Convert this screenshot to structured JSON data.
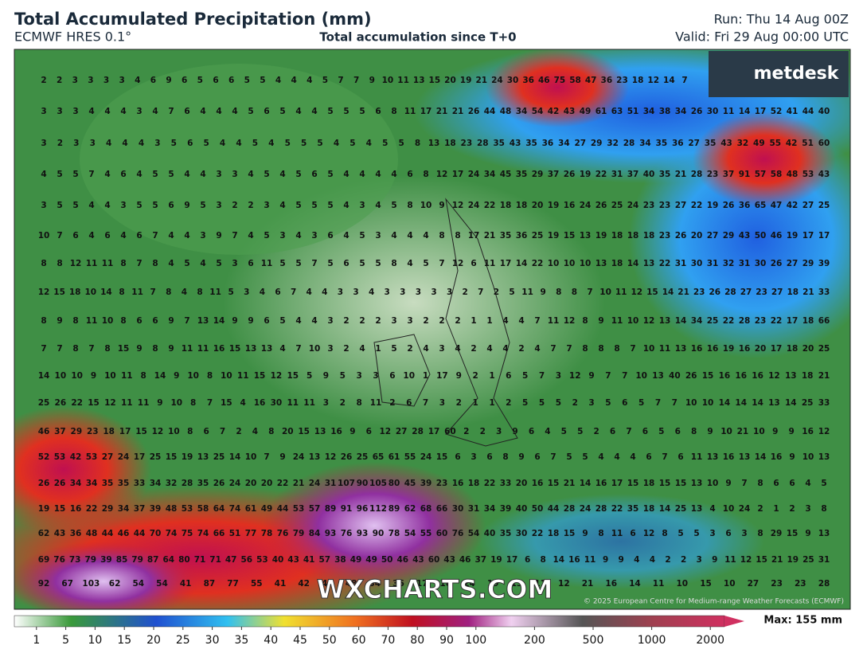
{
  "header": {
    "title": "Total Accumulated Precipitation (mm)",
    "model": "ECMWF HRES 0.1°",
    "subtitle": "Total accumulation since T+0",
    "run": "Run: Thu 14 Aug 00Z",
    "valid": "Valid: Fri 29 Aug 00:00 UTC"
  },
  "logo": "metdesk",
  "watermark": "WXCHARTS.COM",
  "copyright": "© 2025 European Centre for Medium-range Weather Forecasts (ECMWF)",
  "grid": {
    "rows": [
      [
        2,
        2,
        3,
        3,
        3,
        3,
        4,
        6,
        9,
        6,
        5,
        6,
        6,
        5,
        5,
        4,
        4,
        4,
        5,
        7,
        7,
        9,
        10,
        11,
        13,
        15,
        20,
        19,
        21,
        24,
        30,
        36,
        46,
        75,
        58,
        47,
        36,
        23,
        18,
        12,
        14,
        7
      ],
      [
        3,
        3,
        3,
        4,
        4,
        4,
        3,
        4,
        7,
        6,
        4,
        4,
        4,
        5,
        6,
        5,
        4,
        4,
        5,
        5,
        5,
        6,
        8,
        11,
        17,
        21,
        21,
        26,
        44,
        48,
        34,
        54,
        42,
        43,
        49,
        61,
        63,
        51,
        34,
        38,
        34,
        26,
        30,
        11,
        14,
        17,
        52,
        41,
        44,
        40
      ],
      [
        3,
        2,
        3,
        3,
        4,
        4,
        4,
        3,
        5,
        6,
        5,
        4,
        4,
        5,
        4,
        5,
        5,
        5,
        4,
        5,
        4,
        5,
        5,
        8,
        13,
        18,
        23,
        28,
        35,
        43,
        35,
        36,
        34,
        27,
        29,
        32,
        28,
        34,
        35,
        36,
        27,
        35,
        43,
        32,
        49,
        55,
        42,
        51,
        60
      ],
      [
        4,
        5,
        5,
        7,
        4,
        6,
        4,
        5,
        5,
        4,
        4,
        3,
        3,
        4,
        5,
        4,
        5,
        6,
        5,
        4,
        4,
        4,
        4,
        6,
        8,
        12,
        17,
        24,
        34,
        45,
        35,
        29,
        37,
        26,
        19,
        22,
        31,
        37,
        40,
        35,
        21,
        28,
        23,
        37,
        91,
        57,
        58,
        48,
        53,
        43
      ],
      [
        3,
        5,
        5,
        4,
        4,
        3,
        5,
        5,
        6,
        9,
        5,
        3,
        2,
        2,
        3,
        4,
        5,
        5,
        5,
        4,
        3,
        4,
        5,
        8,
        10,
        9,
        12,
        24,
        22,
        18,
        18,
        20,
        19,
        16,
        24,
        26,
        25,
        24,
        23,
        23,
        27,
        22,
        19,
        26,
        36,
        65,
        47,
        42,
        27,
        25
      ],
      [
        10,
        7,
        6,
        4,
        6,
        4,
        6,
        7,
        4,
        4,
        3,
        9,
        7,
        4,
        5,
        3,
        4,
        3,
        6,
        4,
        5,
        3,
        4,
        4,
        4,
        8,
        8,
        17,
        21,
        35,
        36,
        25,
        19,
        15,
        13,
        19,
        18,
        18,
        18,
        23,
        26,
        20,
        27,
        29,
        43,
        50,
        46,
        19,
        17,
        17
      ],
      [
        8,
        8,
        12,
        11,
        11,
        8,
        7,
        8,
        4,
        5,
        4,
        5,
        3,
        6,
        11,
        5,
        5,
        7,
        5,
        6,
        5,
        5,
        8,
        4,
        5,
        7,
        12,
        6,
        11,
        17,
        14,
        22,
        10,
        10,
        10,
        13,
        18,
        14,
        13,
        22,
        31,
        30,
        31,
        32,
        31,
        30,
        26,
        27,
        29,
        39
      ],
      [
        12,
        15,
        18,
        10,
        14,
        8,
        11,
        7,
        8,
        4,
        8,
        11,
        5,
        3,
        4,
        6,
        7,
        4,
        4,
        3,
        3,
        4,
        3,
        3,
        3,
        3,
        3,
        2,
        7,
        2,
        5,
        11,
        9,
        8,
        8,
        7,
        10,
        11,
        12,
        15,
        14,
        21,
        23,
        26,
        28,
        27,
        23,
        27,
        18,
        21,
        33
      ],
      [
        8,
        9,
        8,
        11,
        10,
        8,
        6,
        6,
        9,
        7,
        13,
        14,
        9,
        9,
        6,
        5,
        4,
        4,
        3,
        2,
        2,
        2,
        3,
        3,
        2,
        2,
        2,
        1,
        1,
        4,
        4,
        7,
        11,
        12,
        8,
        9,
        11,
        10,
        12,
        13,
        14,
        34,
        25,
        22,
        28,
        23,
        22,
        17,
        18,
        66
      ],
      [
        7,
        7,
        8,
        7,
        8,
        15,
        9,
        8,
        9,
        11,
        11,
        16,
        15,
        13,
        13,
        4,
        7,
        10,
        3,
        2,
        4,
        1,
        5,
        2,
        4,
        3,
        4,
        2,
        4,
        4,
        2,
        4,
        7,
        7,
        8,
        8,
        8,
        7,
        10,
        11,
        13,
        16,
        16,
        19,
        16,
        20,
        17,
        18,
        20,
        25
      ],
      [
        14,
        10,
        10,
        9,
        10,
        11,
        8,
        14,
        9,
        10,
        8,
        10,
        11,
        15,
        12,
        15,
        5,
        9,
        5,
        3,
        3,
        6,
        10,
        1,
        17,
        9,
        2,
        1,
        6,
        5,
        7,
        3,
        12,
        9,
        7,
        7,
        10,
        13,
        40,
        26,
        15,
        16,
        16,
        16,
        12,
        13,
        18,
        21
      ],
      [
        25,
        26,
        22,
        15,
        12,
        11,
        11,
        9,
        10,
        8,
        7,
        15,
        4,
        16,
        30,
        11,
        11,
        3,
        2,
        8,
        11,
        2,
        6,
        7,
        3,
        2,
        1,
        1,
        2,
        5,
        5,
        5,
        2,
        3,
        5,
        6,
        5,
        7,
        7,
        10,
        10,
        14,
        14,
        14,
        13,
        14,
        25,
        33
      ],
      [
        46,
        37,
        29,
        23,
        18,
        17,
        15,
        12,
        10,
        8,
        6,
        7,
        2,
        4,
        8,
        20,
        15,
        13,
        16,
        9,
        6,
        12,
        27,
        28,
        17,
        60,
        2,
        2,
        3,
        9,
        6,
        4,
        5,
        5,
        2,
        6,
        7,
        6,
        5,
        6,
        8,
        9,
        10,
        21,
        10,
        9,
        9,
        16,
        12
      ],
      [
        52,
        53,
        42,
        53,
        27,
        24,
        17,
        25,
        15,
        19,
        13,
        25,
        14,
        10,
        7,
        9,
        24,
        13,
        12,
        26,
        25,
        65,
        61,
        55,
        24,
        15,
        6,
        3,
        6,
        8,
        9,
        6,
        7,
        5,
        5,
        4,
        4,
        4,
        6,
        7,
        6,
        11,
        13,
        16,
        13,
        14,
        16,
        9,
        10,
        13
      ],
      [
        26,
        26,
        34,
        34,
        35,
        35,
        33,
        34,
        32,
        28,
        35,
        26,
        24,
        20,
        20,
        22,
        21,
        24,
        31,
        107,
        90,
        105,
        80,
        45,
        39,
        23,
        16,
        18,
        22,
        33,
        20,
        16,
        15,
        21,
        14,
        16,
        17,
        15,
        18,
        15,
        15,
        13,
        10,
        9,
        7,
        8,
        6,
        6,
        4,
        5
      ],
      [
        19,
        15,
        16,
        22,
        29,
        34,
        37,
        39,
        48,
        53,
        58,
        64,
        74,
        61,
        49,
        44,
        53,
        57,
        89,
        91,
        96,
        112,
        89,
        62,
        68,
        66,
        30,
        31,
        34,
        39,
        40,
        50,
        44,
        28,
        24,
        28,
        22,
        35,
        18,
        14,
        25,
        13,
        4,
        10,
        24,
        2,
        1,
        2,
        3,
        8
      ],
      [
        62,
        43,
        36,
        48,
        44,
        46,
        44,
        70,
        74,
        75,
        74,
        66,
        51,
        77,
        78,
        76,
        79,
        84,
        93,
        76,
        93,
        90,
        78,
        54,
        55,
        60,
        76,
        54,
        40,
        35,
        30,
        22,
        18,
        15,
        9,
        8,
        11,
        6,
        12,
        8,
        5,
        5,
        3,
        6,
        3,
        8,
        29,
        15,
        9,
        13
      ],
      [
        69,
        76,
        73,
        79,
        39,
        85,
        79,
        87,
        64,
        80,
        71,
        71,
        47,
        56,
        53,
        40,
        43,
        41,
        57,
        38,
        49,
        49,
        50,
        46,
        43,
        60,
        43,
        46,
        37,
        19,
        17,
        6,
        8,
        14,
        16,
        11,
        9,
        9,
        4,
        4,
        2,
        2,
        3,
        9,
        11,
        12,
        15,
        21,
        19,
        25,
        31
      ],
      [
        92,
        67,
        103,
        62,
        54,
        54,
        41,
        87,
        77,
        55,
        41,
        42,
        40,
        48,
        34,
        36,
        17,
        18,
        24,
        19,
        13,
        11,
        12,
        21,
        16,
        14,
        11,
        10,
        15,
        10,
        27,
        23,
        23,
        28
      ]
    ]
  },
  "colorbar": {
    "ticks": [
      1,
      5,
      10,
      15,
      20,
      25,
      30,
      35,
      40,
      45,
      50,
      60,
      70,
      80,
      90,
      100,
      200,
      500,
      1000,
      2000
    ],
    "max_label": "Max: 155 mm"
  }
}
